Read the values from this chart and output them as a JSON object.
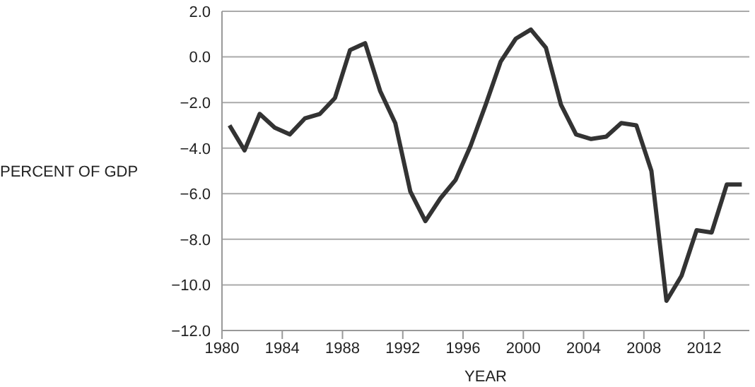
{
  "chart_data": {
    "type": "line",
    "xlabel": "YEAR",
    "ylabel": "PERCENT OF GDP",
    "x": [
      1980.5,
      1981.5,
      1982.5,
      1983.5,
      1984.5,
      1985.5,
      1986.5,
      1987.5,
      1988.5,
      1989.5,
      1990.5,
      1991.5,
      1992.5,
      1993.5,
      1994.5,
      1995.5,
      1996.5,
      1997.5,
      1998.5,
      1999.5,
      2000.5,
      2001.5,
      2002.5,
      2003.5,
      2004.5,
      2005.5,
      2006.5,
      2007.5,
      2008.5,
      2009.5,
      2010.5,
      2011.5,
      2012.5,
      2013.5,
      2014.5
    ],
    "series": [
      {
        "color": "#333333",
        "values": [
          -3.0,
          -4.1,
          -2.5,
          -3.1,
          -3.4,
          -2.7,
          -2.5,
          -1.8,
          0.3,
          0.6,
          -1.5,
          -2.9,
          -5.9,
          -7.2,
          -6.2,
          -5.4,
          -3.9,
          -2.1,
          -0.2,
          0.8,
          1.2,
          0.4,
          -2.1,
          -3.4,
          -3.6,
          -3.5,
          -2.9,
          -3.0,
          -5.0,
          -10.7,
          -9.6,
          -7.6,
          -7.7,
          -5.6,
          -5.6
        ]
      }
    ],
    "xlim": [
      1980,
      2015
    ],
    "xticks": [
      1980,
      1984,
      1988,
      1992,
      1996,
      2000,
      2004,
      2008,
      2012
    ],
    "ylim": [
      -12,
      2
    ],
    "yticks": [
      {
        "value": 2,
        "label": "2.0"
      },
      {
        "value": 0,
        "label": "0.0"
      },
      {
        "value": -2,
        "label": "−2.0"
      },
      {
        "value": -4,
        "label": "−4.0"
      },
      {
        "value": -6,
        "label": "−6.0"
      },
      {
        "value": -8,
        "label": "−8.0"
      },
      {
        "value": -10,
        "label": "−10.0"
      },
      {
        "value": -12,
        "label": "−12.0"
      }
    ],
    "grid": "y",
    "marker": "none",
    "line_style": "solid"
  }
}
